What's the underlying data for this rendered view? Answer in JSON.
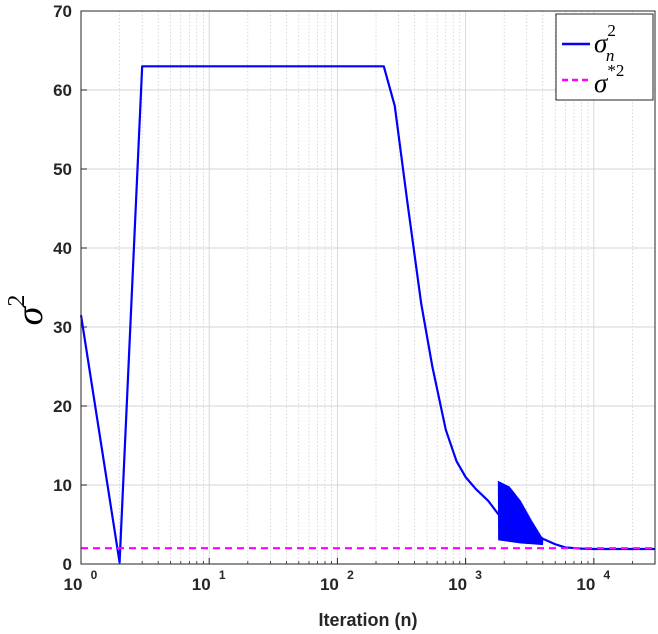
{
  "chart_data": {
    "type": "line",
    "xlabel": "Iteration (n)",
    "ylabel": "σ",
    "ylabel_sup": "2",
    "x_scale": "log",
    "xlim": [
      1,
      30000
    ],
    "ylim": [
      0,
      70
    ],
    "y_ticks": [
      0,
      10,
      20,
      30,
      40,
      50,
      60,
      70
    ],
    "x_ticks": [
      {
        "value": 1,
        "base": "10",
        "exp": "0"
      },
      {
        "value": 10,
        "base": "10",
        "exp": "1"
      },
      {
        "value": 100,
        "base": "10",
        "exp": "2"
      },
      {
        "value": 1000,
        "base": "10",
        "exp": "3"
      },
      {
        "value": 10000,
        "base": "10",
        "exp": "4"
      }
    ],
    "grid": true,
    "legend_position": "top-right",
    "series": [
      {
        "name": "σ",
        "name_sup": "2",
        "name_sub": "n",
        "color": "#0000ff",
        "style": "solid",
        "x": [
          1,
          2,
          3,
          10,
          100,
          230,
          280,
          350,
          450,
          550,
          700,
          850,
          1000,
          1200,
          1500,
          1800,
          2200,
          2700,
          3300,
          4000,
          5000,
          6000,
          8000,
          10000,
          20000,
          30000
        ],
        "y": [
          31.5,
          0.2,
          63,
          63,
          63,
          63,
          58,
          46,
          33,
          25,
          17,
          13,
          11,
          9.5,
          8,
          6.3,
          5,
          4.5,
          4,
          3.2,
          2.5,
          2.1,
          1.95,
          1.9,
          1.9,
          1.9
        ],
        "oscillation": {
          "x_start": 1800,
          "x_end": 4000,
          "upper": [
            10.5,
            9.8,
            8,
            5.5,
            3.2
          ],
          "lower": [
            3,
            2.8,
            2.6,
            2.5,
            2.4
          ]
        }
      },
      {
        "name": "σ",
        "name_sup": "*2",
        "color": "#ff00ff",
        "style": "dashed",
        "x": [
          1,
          30000
        ],
        "y": [
          2,
          2
        ]
      }
    ]
  }
}
